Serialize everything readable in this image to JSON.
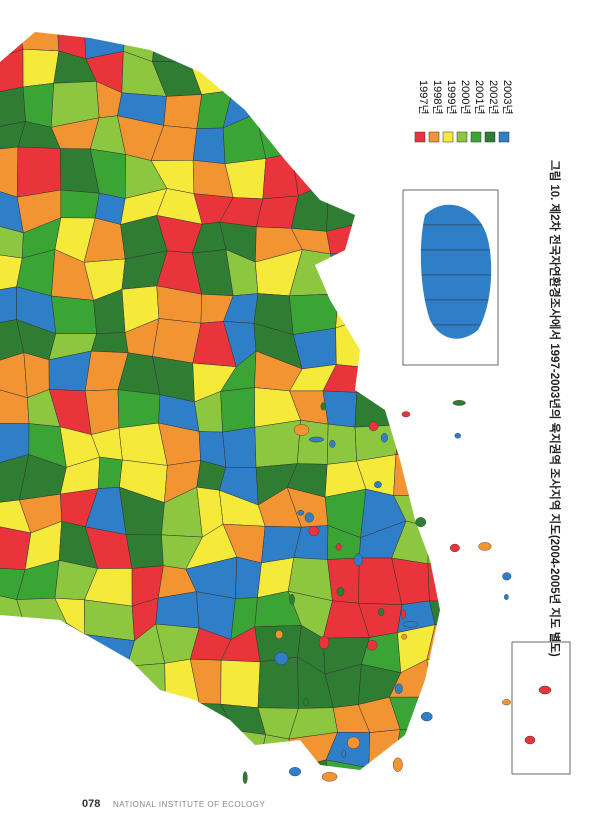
{
  "legend": {
    "items": [
      {
        "label": "1997년",
        "color": "#e8343a"
      },
      {
        "label": "1998년",
        "color": "#f39433"
      },
      {
        "label": "1999년",
        "color": "#f5ea3a"
      },
      {
        "label": "2000년",
        "color": "#8dc63f"
      },
      {
        "label": "2001년",
        "color": "#3aa535"
      },
      {
        "label": "2002년",
        "color": "#2e7d32"
      },
      {
        "label": "2003년",
        "color": "#2f7fc8"
      }
    ]
  },
  "caption": "그림 10. 제2차 전국자연환경조사에서 1997-2003년의 육지권역 조사지역 지도(2004-2005년 지도 별도)",
  "footer": {
    "page": "078",
    "publisher": "NATIONAL INSTITUTE OF ECOLOGY"
  }
}
